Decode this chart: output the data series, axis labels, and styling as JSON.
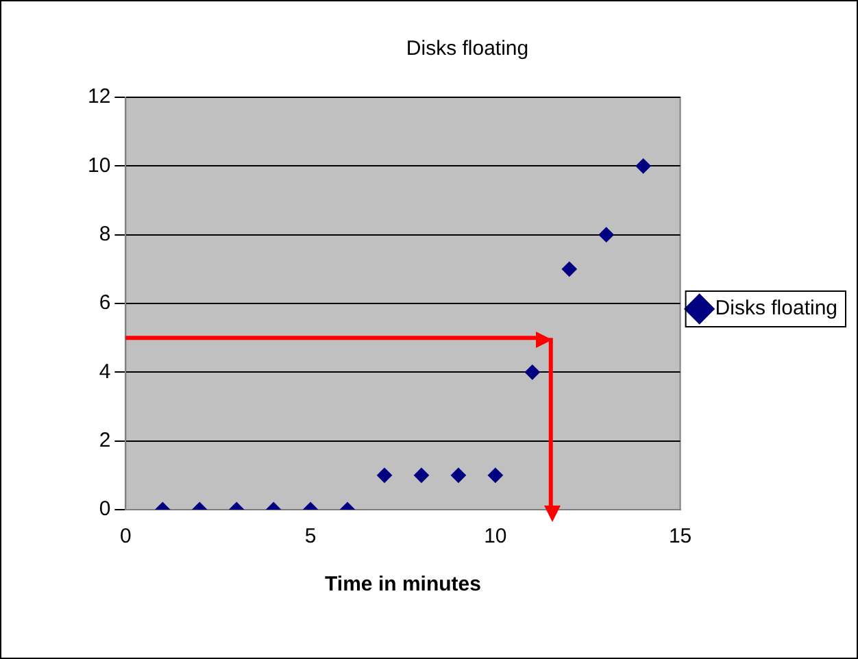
{
  "chart_data": {
    "type": "scatter",
    "title": "Disks floating",
    "xlabel": "Time in minutes",
    "x": [
      1,
      2,
      3,
      4,
      5,
      6,
      7,
      8,
      9,
      10,
      11,
      12,
      13,
      14
    ],
    "series": [
      {
        "name": "Disks floating",
        "color": "#000080",
        "values": [
          0,
          0,
          0,
          0,
          0,
          0,
          1,
          1,
          1,
          1,
          4,
          7,
          8,
          10
        ]
      }
    ],
    "xlim": [
      0,
      15
    ],
    "xticks": [
      0,
      5,
      10,
      15
    ],
    "ylim": [
      0,
      12
    ],
    "yticks": [
      0,
      2,
      4,
      6,
      8,
      10,
      12
    ],
    "grid": "y",
    "legend": "right",
    "marker": "diamond",
    "ref_lines": [
      {
        "axis": "y",
        "value": 5,
        "color": "#ff0000"
      },
      {
        "axis": "x",
        "value": 11.5,
        "color": "#ff0000"
      }
    ]
  }
}
